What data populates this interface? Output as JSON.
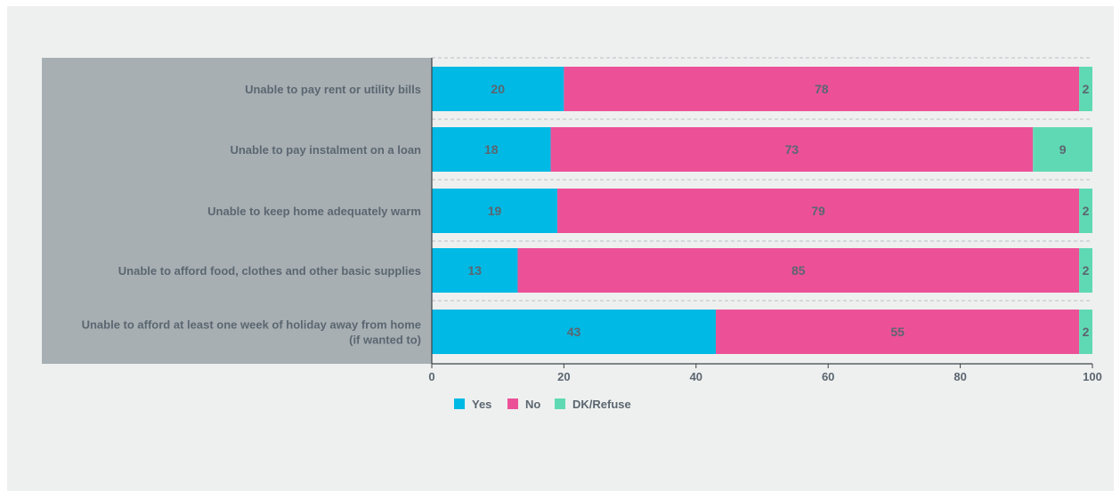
{
  "chart_data": {
    "type": "bar",
    "orientation": "horizontal",
    "stacked": true,
    "categories": [
      [
        "Unable to pay rent or utility bills"
      ],
      [
        "Unable to pay instalment on a loan"
      ],
      [
        "Unable to keep home adequately warm"
      ],
      [
        "Unable to afford food, clothes and other basic supplies"
      ],
      [
        "Unable to afford at least one week of holiday away from home",
        "(if wanted to)"
      ]
    ],
    "series": [
      {
        "name": "Yes",
        "color": "#00b9e4",
        "values": [
          20,
          18,
          19,
          13,
          43
        ]
      },
      {
        "name": "No",
        "color": "#ec5198",
        "values": [
          78,
          73,
          79,
          85,
          55
        ]
      },
      {
        "name": "DK/Refuse",
        "color": "#5fd9b3",
        "values": [
          2,
          9,
          2,
          2,
          2
        ]
      }
    ],
    "xlim": [
      0,
      100
    ],
    "xticks": [
      0,
      20,
      40,
      60,
      80,
      100
    ],
    "grid": "dashed horizontal",
    "legend_position": "bottom-center",
    "category_panel_color": "#a7afb3",
    "label_color": "#5b6670"
  }
}
